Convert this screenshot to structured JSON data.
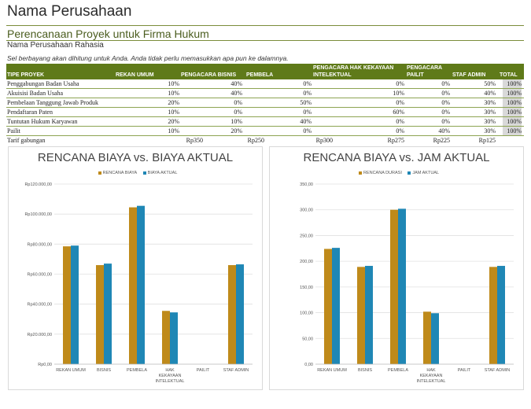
{
  "header": {
    "company": "Nama Perusahaan",
    "subtitle": "Perencanaan Proyek untuk Firma Hukum",
    "confidential": "Nama Perusahaan Rahasia",
    "note": "Sel berbayang akan dihitung untuk Anda. Anda tidak perlu memasukkan apa pun ke dalamnya."
  },
  "table": {
    "columns": {
      "type": "TIPE PROYEK",
      "rekan": "REKAN UMUM",
      "bisnis": "PENGACARA BISNIS",
      "pembela": "PEMBELA",
      "hki_1": "PENGACARA HAK KEKAYAAN",
      "hki_2": "INTELEKTUAL",
      "pailit_1": "PENGACARA",
      "pailit_2": "PAILIT",
      "admin": "STAF ADMIN",
      "total": "TOTAL"
    },
    "rows": [
      {
        "name": "Penggabungan Badan Usaha",
        "rekan": "10%",
        "bisnis": "40%",
        "pembela": "0%",
        "hki": "0%",
        "pailit": "0%",
        "admin": "50%",
        "total": "100%"
      },
      {
        "name": "Akuisisi Badan Usaha",
        "rekan": "10%",
        "bisnis": "40%",
        "pembela": "0%",
        "hki": "10%",
        "pailit": "0%",
        "admin": "40%",
        "total": "100%"
      },
      {
        "name": "Pembelaan Tanggung Jawab Produk",
        "rekan": "20%",
        "bisnis": "0%",
        "pembela": "50%",
        "hki": "0%",
        "pailit": "0%",
        "admin": "30%",
        "total": "100%"
      },
      {
        "name": "Pendaftaran Paten",
        "rekan": "10%",
        "bisnis": "0%",
        "pembela": "0%",
        "hki": "60%",
        "pailit": "0%",
        "admin": "30%",
        "total": "100%"
      },
      {
        "name": "Tuntutan Hukum Karyawan",
        "rekan": "20%",
        "bisnis": "10%",
        "pembela": "40%",
        "hki": "0%",
        "pailit": "0%",
        "admin": "30%",
        "total": "100%"
      },
      {
        "name": "Pailit",
        "rekan": "10%",
        "bisnis": "20%",
        "pembela": "0%",
        "hki": "0%",
        "pailit": "40%",
        "admin": "30%",
        "total": "100%"
      }
    ],
    "rates": {
      "label": "Tarif gabungan",
      "rekan": "Rp350",
      "bisnis": "Rp250",
      "pembela": "Rp300",
      "hki": "Rp275",
      "pailit": "Rp225",
      "admin": "Rp125"
    }
  },
  "colors": {
    "plan": "#bf8a1a",
    "actual": "#1f87b5",
    "header_bg": "#5f7a19"
  },
  "chart_data": [
    {
      "type": "bar",
      "title": "RENCANA BIAYA vs. BIAYA AKTUAL",
      "categories": [
        "REKAN UMUM",
        "BISNIS",
        "PEMBELA",
        "HAK KEKAYAAN INTELEKTUAL",
        "PAILIT",
        "STAF ADMIN"
      ],
      "category_lines": [
        [
          "REKAN UMUM"
        ],
        [
          "BISNIS"
        ],
        [
          "PEMBELA"
        ],
        [
          "HAK",
          "KEKAYAAN",
          "INTELEKTUAL"
        ],
        [
          "PAILIT"
        ],
        [
          "STAF ADMIN"
        ]
      ],
      "series": [
        {
          "name": "RENCANA BIAYA",
          "values": [
            78500,
            66000,
            104500,
            35500,
            0,
            66000
          ]
        },
        {
          "name": "BIAYA AKTUAL",
          "values": [
            79000,
            67000,
            105500,
            34500,
            0,
            66500
          ]
        }
      ],
      "ylim": [
        0,
        120000
      ],
      "yticks": [
        0,
        20000,
        40000,
        60000,
        80000,
        100000,
        120000
      ],
      "ytick_labels": [
        "Rp0,00",
        "Rp20.000,00",
        "Rp40.000,00",
        "Rp60.000,00",
        "Rp80.000,00",
        "Rp100.000,00",
        "Rp120.000,00"
      ],
      "grid": true,
      "legend": "top"
    },
    {
      "type": "bar",
      "title": "RENCANA BIAYA vs. JAM AKTUAL",
      "categories": [
        "REKAN UMUM",
        "BISNIS",
        "PEMBELA",
        "HAK KEKAYAAN INTELEKTUAL",
        "PAILIT",
        "STAF ADMIN"
      ],
      "category_lines": [
        [
          "REKAN UMUM"
        ],
        [
          "BISNIS"
        ],
        [
          "PEMBELA"
        ],
        [
          "HAK",
          "KEKAYAAN",
          "INTELEKTUAL"
        ],
        [
          "PAILIT"
        ],
        [
          "STAF ADMIN"
        ]
      ],
      "series": [
        {
          "name": "RENCANA DURASI",
          "values": [
            224,
            189,
            300,
            102,
            0,
            189
          ]
        },
        {
          "name": "JAM AKTUAL",
          "values": [
            226,
            191,
            302,
            99,
            0,
            191
          ]
        }
      ],
      "ylim": [
        0,
        350
      ],
      "yticks": [
        0,
        50,
        100,
        150,
        200,
        250,
        300,
        350
      ],
      "ytick_labels": [
        "0,00",
        "50,00",
        "100,00",
        "150,00",
        "200,00",
        "250,00",
        "300,00",
        "350,00"
      ],
      "grid": true,
      "legend": "top"
    }
  ]
}
